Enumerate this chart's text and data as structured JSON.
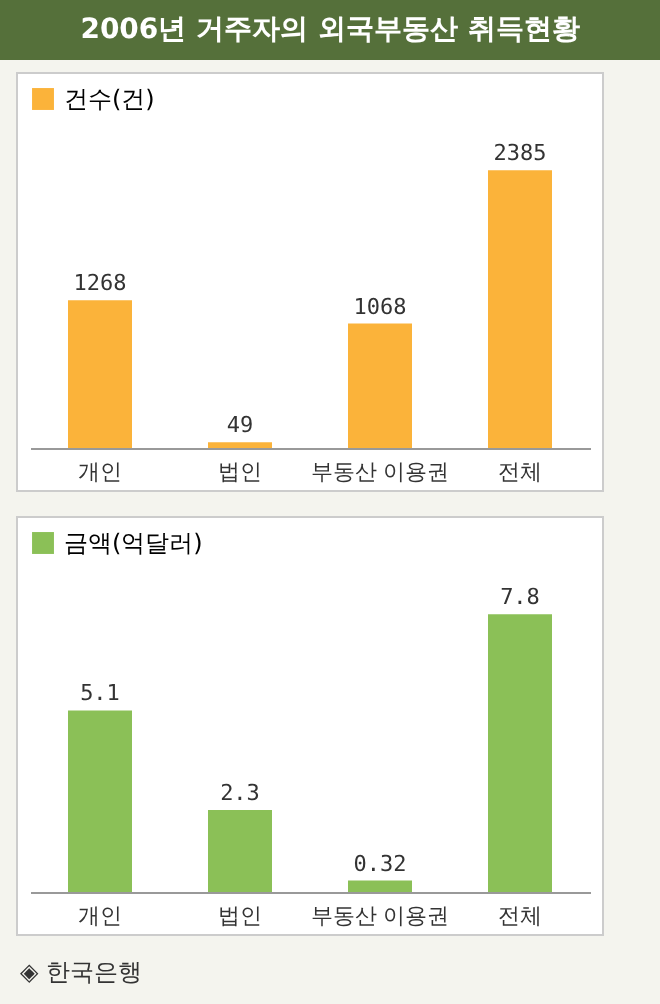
{
  "chart_data": [
    {
      "type": "bar",
      "title": "2006년 거주자의 외국부동산 취득현황",
      "categories": [
        "개인",
        "법인",
        "부동산 이용권",
        "전체"
      ],
      "series": [
        {
          "name": "건수(건)",
          "color": "#fbb33a",
          "values": [
            1268,
            49,
            1068,
            2385
          ]
        }
      ],
      "data_labels": true,
      "legend": "top left",
      "grid": false
    },
    {
      "type": "bar",
      "categories": [
        "개인",
        "법인",
        "부동산 이용권",
        "전체"
      ],
      "series": [
        {
          "name": "금액(억달러)",
          "color": "#8bc057",
          "values": [
            5.1,
            2.3,
            0.32,
            7.8
          ]
        }
      ],
      "data_labels": true,
      "legend": "top left",
      "grid": false,
      "annotations": [
        "◈ 한국은행"
      ]
    }
  ]
}
